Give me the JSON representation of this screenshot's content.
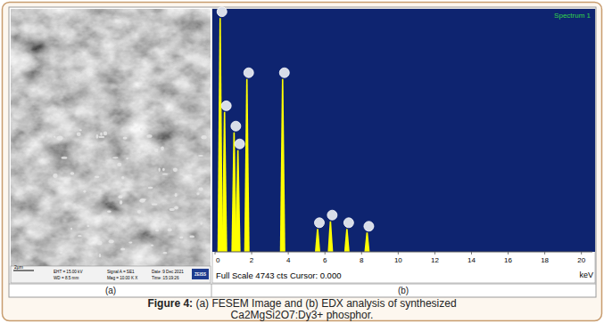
{
  "figure": {
    "panel_a": {
      "label": "(a)",
      "scale_bar": "2µm",
      "info": [
        "EHT = 15.00 kV",
        "WD = 8.5 mm",
        "Signal A = SE1",
        "Mag = 10.00 K X",
        "Date :9 Dec 2021",
        "Time :15:19:26"
      ],
      "logo": "ZEISS"
    },
    "panel_b": {
      "label": "(b)",
      "status": "Full Scale 4743 cts Cursor: 0.000"
    }
  },
  "chart_data": {
    "type": "bar",
    "title": "Spectrum 1",
    "xlabel": "keV",
    "x": [
      0.28,
      0.52,
      1.04,
      1.25,
      1.74,
      3.69,
      5.6,
      6.3,
      7.2,
      8.3
    ],
    "values": [
      4600,
      2750,
      2350,
      2000,
      3400,
      3400,
      450,
      600,
      450,
      380
    ],
    "color": "#ffff00",
    "xlim": [
      0,
      20.6
    ],
    "xticks": [
      0,
      2,
      4,
      6,
      8,
      10,
      12,
      14,
      16,
      18,
      20
    ],
    "ylim": [
      0,
      4743
    ],
    "tick_labels": "x"
  },
  "caption": {
    "label": "Figure 4:",
    "text": [
      "(a) FESEM Image and (b) EDX analysis of synthesized",
      "Ca2MgSi2O7:Dy3+ phosphor."
    ]
  }
}
